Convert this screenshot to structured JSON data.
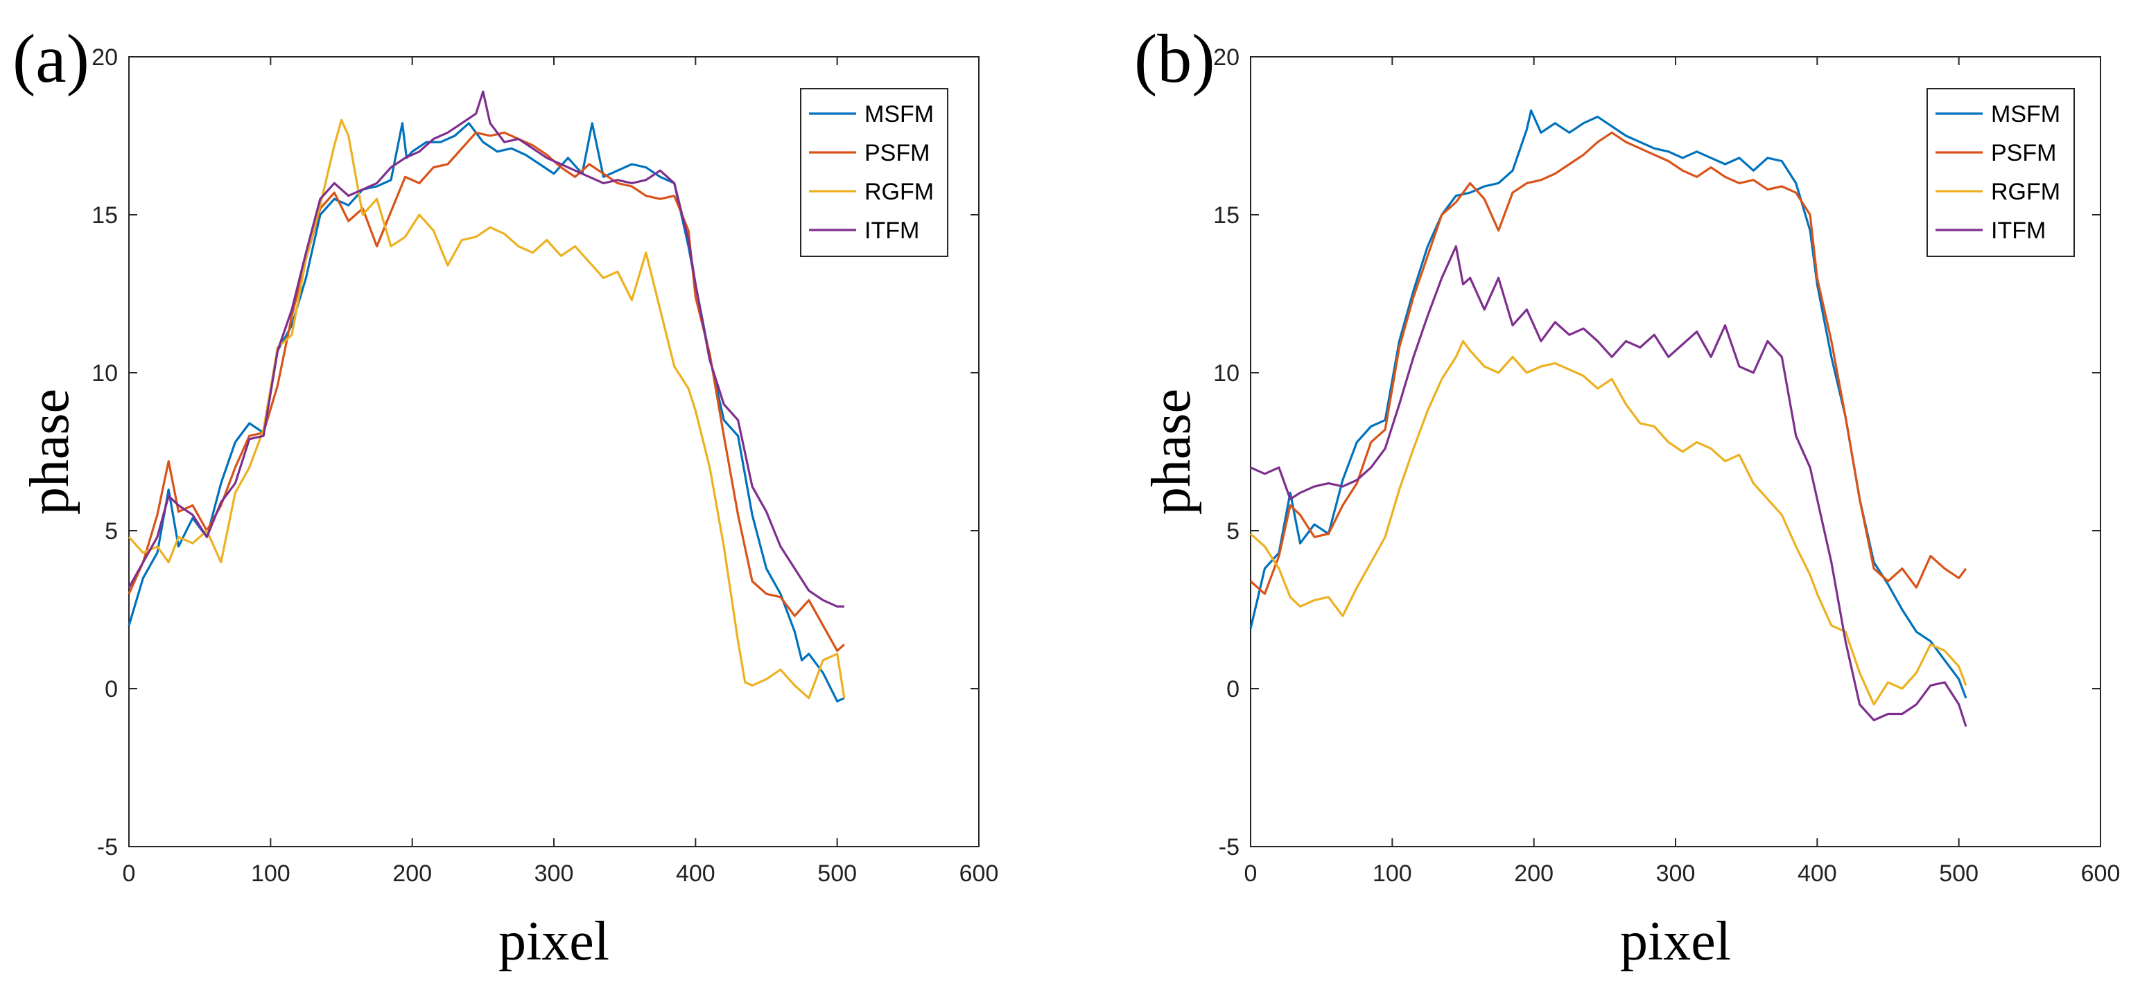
{
  "chart_data": [
    {
      "type": "line",
      "panel_label": "(a)",
      "xlabel": "pixel",
      "ylabel": "phase",
      "xlim": [
        0,
        600
      ],
      "ylim": [
        -5,
        20
      ],
      "xticks": [
        0,
        100,
        200,
        300,
        400,
        500,
        600
      ],
      "yticks": [
        -5,
        0,
        5,
        10,
        15,
        20
      ],
      "xtick_labels": [
        "0",
        "100",
        "200",
        "300",
        "400",
        "500",
        "600"
      ],
      "ytick_labels": [
        "-5",
        "0",
        "5",
        "10",
        "15",
        "20"
      ],
      "grid": false,
      "legend_position": "top-right",
      "series": [
        {
          "name": "MSFM",
          "color": "#0072BD",
          "x": [
            0,
            10,
            20,
            28,
            35,
            45,
            55,
            65,
            75,
            85,
            95,
            105,
            115,
            125,
            135,
            145,
            155,
            165,
            175,
            185,
            193,
            196,
            200,
            210,
            220,
            230,
            240,
            250,
            260,
            270,
            280,
            290,
            300,
            310,
            320,
            327,
            335,
            345,
            355,
            365,
            375,
            385,
            395,
            400,
            410,
            420,
            430,
            440,
            450,
            460,
            470,
            475,
            480,
            490,
            500,
            505
          ],
          "y": [
            2.0,
            3.5,
            4.3,
            6.3,
            4.5,
            5.4,
            4.8,
            6.5,
            7.8,
            8.4,
            8.1,
            10.7,
            11.5,
            13.0,
            15.0,
            15.5,
            15.3,
            15.8,
            15.9,
            16.1,
            17.9,
            16.8,
            17.0,
            17.3,
            17.3,
            17.5,
            17.9,
            17.3,
            17.0,
            17.1,
            16.9,
            16.6,
            16.3,
            16.8,
            16.3,
            17.9,
            16.2,
            16.4,
            16.6,
            16.5,
            16.2,
            16.0,
            14.0,
            12.8,
            10.5,
            8.5,
            8.0,
            5.5,
            3.8,
            3.0,
            1.8,
            0.9,
            1.1,
            0.5,
            -0.4,
            -0.3
          ]
        },
        {
          "name": "PSFM",
          "color": "#D95319",
          "x": [
            0,
            10,
            20,
            28,
            35,
            45,
            55,
            65,
            75,
            85,
            95,
            105,
            115,
            125,
            135,
            145,
            155,
            165,
            175,
            185,
            195,
            205,
            215,
            225,
            235,
            245,
            255,
            265,
            275,
            285,
            295,
            305,
            315,
            325,
            335,
            345,
            355,
            365,
            375,
            385,
            395,
            400,
            410,
            420,
            430,
            440,
            450,
            460,
            470,
            480,
            490,
            500,
            505
          ],
          "y": [
            3.0,
            4.0,
            5.5,
            7.2,
            5.6,
            5.8,
            5.0,
            5.8,
            7.0,
            8.0,
            8.1,
            9.6,
            11.8,
            13.6,
            15.2,
            15.7,
            14.8,
            15.2,
            14.0,
            15.1,
            16.2,
            16.0,
            16.5,
            16.6,
            17.1,
            17.6,
            17.5,
            17.6,
            17.4,
            17.2,
            16.9,
            16.5,
            16.2,
            16.6,
            16.3,
            16.0,
            15.9,
            15.6,
            15.5,
            15.6,
            14.5,
            12.4,
            10.6,
            8.0,
            5.5,
            3.4,
            3.0,
            2.9,
            2.3,
            2.8,
            2.0,
            1.2,
            1.4
          ]
        },
        {
          "name": "RGFM",
          "color": "#EDB120",
          "x": [
            0,
            10,
            20,
            28,
            35,
            45,
            55,
            65,
            75,
            85,
            95,
            105,
            115,
            125,
            135,
            145,
            150,
            155,
            165,
            175,
            185,
            195,
            205,
            215,
            225,
            235,
            245,
            255,
            265,
            275,
            285,
            295,
            305,
            315,
            325,
            335,
            345,
            355,
            365,
            375,
            385,
            395,
            400,
            410,
            420,
            425,
            430,
            435,
            440,
            450,
            460,
            470,
            480,
            490,
            500,
            505
          ],
          "y": [
            4.8,
            4.3,
            4.5,
            4.0,
            4.8,
            4.6,
            5.0,
            4.0,
            6.2,
            7.0,
            8.2,
            10.8,
            11.2,
            13.6,
            15.3,
            17.2,
            18.0,
            17.5,
            15.0,
            15.5,
            14.0,
            14.3,
            15.0,
            14.5,
            13.4,
            14.2,
            14.3,
            14.6,
            14.4,
            14.0,
            13.8,
            14.2,
            13.7,
            14.0,
            13.5,
            13.0,
            13.2,
            12.3,
            13.8,
            12.0,
            10.2,
            9.5,
            8.8,
            7.0,
            4.5,
            3.0,
            1.5,
            0.2,
            0.1,
            0.3,
            0.6,
            0.1,
            -0.3,
            0.9,
            1.1,
            -0.3
          ]
        },
        {
          "name": "ITFM",
          "color": "#7E2F8E",
          "x": [
            0,
            10,
            20,
            28,
            35,
            45,
            55,
            65,
            75,
            85,
            95,
            105,
            115,
            125,
            135,
            145,
            155,
            165,
            175,
            185,
            195,
            205,
            215,
            225,
            235,
            245,
            250,
            255,
            265,
            275,
            285,
            295,
            305,
            315,
            325,
            335,
            345,
            355,
            365,
            375,
            385,
            395,
            400,
            410,
            420,
            430,
            440,
            450,
            460,
            470,
            480,
            490,
            500,
            505
          ],
          "y": [
            3.2,
            4.0,
            4.8,
            6.1,
            5.8,
            5.5,
            4.8,
            5.9,
            6.5,
            7.9,
            8.0,
            10.7,
            12.0,
            13.8,
            15.5,
            16.0,
            15.6,
            15.8,
            16.0,
            16.5,
            16.8,
            17.0,
            17.4,
            17.6,
            17.9,
            18.2,
            18.9,
            17.9,
            17.3,
            17.4,
            17.1,
            16.8,
            16.6,
            16.4,
            16.2,
            16.0,
            16.1,
            16.0,
            16.1,
            16.4,
            16.0,
            14.2,
            12.8,
            10.4,
            9.0,
            8.5,
            6.4,
            5.6,
            4.5,
            3.8,
            3.1,
            2.8,
            2.6,
            2.6
          ]
        }
      ]
    },
    {
      "type": "line",
      "panel_label": "(b)",
      "xlabel": "pixel",
      "ylabel": "phase",
      "xlim": [
        0,
        600
      ],
      "ylim": [
        -5,
        20
      ],
      "xticks": [
        0,
        100,
        200,
        300,
        400,
        500,
        600
      ],
      "yticks": [
        -5,
        0,
        5,
        10,
        15,
        20
      ],
      "xtick_labels": [
        "0",
        "100",
        "200",
        "300",
        "400",
        "500",
        "600"
      ],
      "ytick_labels": [
        "-5",
        "0",
        "5",
        "10",
        "15",
        "20"
      ],
      "grid": false,
      "legend_position": "top-right",
      "series": [
        {
          "name": "MSFM",
          "color": "#0072BD",
          "x": [
            0,
            10,
            20,
            28,
            35,
            45,
            55,
            65,
            75,
            85,
            95,
            105,
            115,
            125,
            135,
            145,
            155,
            165,
            175,
            185,
            195,
            198,
            205,
            215,
            225,
            235,
            245,
            255,
            265,
            275,
            285,
            295,
            305,
            315,
            325,
            335,
            345,
            355,
            365,
            375,
            385,
            395,
            400,
            410,
            420,
            430,
            440,
            450,
            460,
            470,
            480,
            490,
            500,
            505
          ],
          "y": [
            1.9,
            3.8,
            4.3,
            6.2,
            4.6,
            5.2,
            4.9,
            6.6,
            7.8,
            8.3,
            8.5,
            11.0,
            12.6,
            14.0,
            15.0,
            15.6,
            15.7,
            15.9,
            16.0,
            16.4,
            17.7,
            18.3,
            17.6,
            17.9,
            17.6,
            17.9,
            18.1,
            17.8,
            17.5,
            17.3,
            17.1,
            17.0,
            16.8,
            17.0,
            16.8,
            16.6,
            16.8,
            16.4,
            16.8,
            16.7,
            16.0,
            14.5,
            12.8,
            10.5,
            8.6,
            6.0,
            4.0,
            3.3,
            2.5,
            1.8,
            1.5,
            0.9,
            0.3,
            -0.3
          ]
        },
        {
          "name": "PSFM",
          "color": "#D95319",
          "x": [
            0,
            10,
            20,
            28,
            35,
            45,
            55,
            65,
            75,
            85,
            95,
            105,
            115,
            125,
            135,
            145,
            155,
            165,
            175,
            185,
            195,
            205,
            215,
            225,
            235,
            245,
            255,
            265,
            275,
            285,
            295,
            305,
            315,
            325,
            335,
            345,
            355,
            365,
            375,
            385,
            395,
            400,
            410,
            420,
            430,
            440,
            450,
            460,
            470,
            480,
            490,
            500,
            505
          ],
          "y": [
            3.4,
            3.0,
            4.2,
            5.8,
            5.5,
            4.8,
            4.9,
            5.8,
            6.5,
            7.8,
            8.2,
            10.8,
            12.4,
            13.7,
            15.0,
            15.4,
            16.0,
            15.5,
            14.5,
            15.7,
            16.0,
            16.1,
            16.3,
            16.6,
            16.9,
            17.3,
            17.6,
            17.3,
            17.1,
            16.9,
            16.7,
            16.4,
            16.2,
            16.5,
            16.2,
            16.0,
            16.1,
            15.8,
            15.9,
            15.7,
            15.0,
            13.0,
            11.0,
            8.6,
            6.0,
            3.8,
            3.4,
            3.8,
            3.2,
            4.2,
            3.8,
            3.5,
            3.8
          ]
        },
        {
          "name": "RGFM",
          "color": "#EDB120",
          "x": [
            0,
            10,
            20,
            28,
            35,
            45,
            55,
            65,
            75,
            85,
            95,
            105,
            115,
            125,
            135,
            145,
            150,
            155,
            165,
            175,
            185,
            195,
            205,
            215,
            225,
            235,
            245,
            255,
            265,
            275,
            285,
            295,
            305,
            315,
            325,
            335,
            345,
            355,
            365,
            375,
            385,
            395,
            400,
            410,
            420,
            430,
            440,
            450,
            460,
            470,
            480,
            490,
            500,
            505
          ],
          "y": [
            4.9,
            4.5,
            3.8,
            2.9,
            2.6,
            2.8,
            2.9,
            2.3,
            3.2,
            4.0,
            4.8,
            6.3,
            7.6,
            8.8,
            9.8,
            10.5,
            11.0,
            10.7,
            10.2,
            10.0,
            10.5,
            10.0,
            10.2,
            10.3,
            10.1,
            9.9,
            9.5,
            9.8,
            9.0,
            8.4,
            8.3,
            7.8,
            7.5,
            7.8,
            7.6,
            7.2,
            7.4,
            6.5,
            6.0,
            5.5,
            4.5,
            3.6,
            3.0,
            2.0,
            1.8,
            0.5,
            -0.5,
            0.2,
            0.0,
            0.5,
            1.4,
            1.2,
            0.7,
            0.1
          ]
        },
        {
          "name": "ITFM",
          "color": "#7E2F8E",
          "x": [
            0,
            10,
            20,
            28,
            35,
            45,
            55,
            65,
            75,
            85,
            95,
            105,
            115,
            125,
            135,
            145,
            150,
            155,
            165,
            175,
            185,
            195,
            205,
            215,
            225,
            235,
            245,
            255,
            265,
            275,
            285,
            295,
            305,
            315,
            325,
            335,
            345,
            355,
            365,
            375,
            385,
            395,
            400,
            410,
            420,
            430,
            440,
            450,
            460,
            470,
            480,
            490,
            500,
            505
          ],
          "y": [
            7.0,
            6.8,
            7.0,
            6.0,
            6.2,
            6.4,
            6.5,
            6.4,
            6.6,
            7.0,
            7.6,
            9.0,
            10.5,
            11.8,
            13.0,
            14.0,
            12.8,
            13.0,
            12.0,
            13.0,
            11.5,
            12.0,
            11.0,
            11.6,
            11.2,
            11.4,
            11.0,
            10.5,
            11.0,
            10.8,
            11.2,
            10.5,
            10.9,
            11.3,
            10.5,
            11.5,
            10.2,
            10.0,
            11.0,
            10.5,
            8.0,
            7.0,
            6.0,
            4.0,
            1.5,
            -0.5,
            -1.0,
            -0.8,
            -0.8,
            -0.5,
            0.1,
            0.2,
            -0.5,
            -1.2
          ]
        }
      ]
    }
  ]
}
